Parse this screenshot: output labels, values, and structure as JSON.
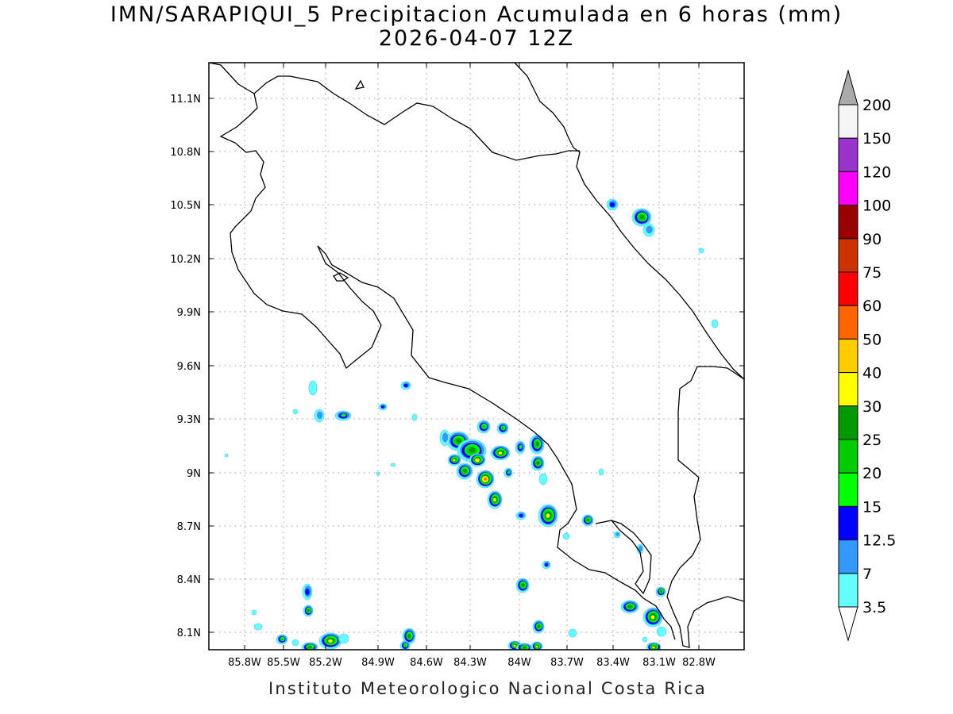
{
  "title": {
    "line1": "IMN/SARAPIQUI_5 Precipitacion Acumulada en 6 horas (mm)",
    "line2": "2026-04-07 12Z"
  },
  "footer": "Instituto Meteorologico Nacional Costa Rica",
  "map": {
    "lon_ticks": [
      "85.8W",
      "85.5W",
      "85.2W",
      "84.9W",
      "84.6W",
      "84.3W",
      "84W",
      "83.7W",
      "83.4W",
      "83.1W",
      "82.8W"
    ],
    "lat_ticks": [
      "11.1N",
      "10.8N",
      "10.5N",
      "10.2N",
      "9.9N",
      "9.6N",
      "9.3N",
      "9N",
      "8.7N",
      "8.4N",
      "8.1N"
    ],
    "grid": "dotted"
  },
  "colorbar": {
    "levels": [
      "3.5",
      "7",
      "12.5",
      "15",
      "20",
      "25",
      "30",
      "40",
      "50",
      "60",
      "75",
      "90",
      "100",
      "120",
      "150",
      "200"
    ],
    "colors": [
      "#66ffff",
      "#3399ff",
      "#0000ff",
      "#00ff00",
      "#00cc00",
      "#009900",
      "#ffff00",
      "#ffcc00",
      "#ff6600",
      "#ff0000",
      "#cc3300",
      "#990000",
      "#ff00ff",
      "#9933cc",
      "#f5f5f5",
      "#aaaaaa"
    ]
  }
}
